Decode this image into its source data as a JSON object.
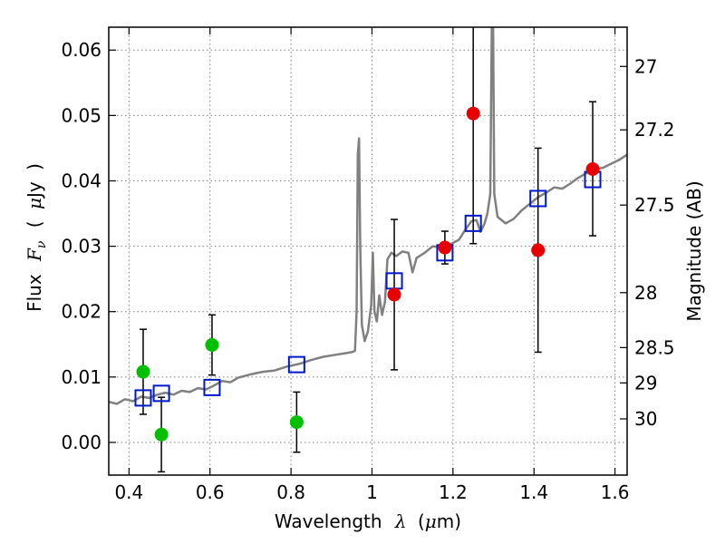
{
  "chart_data": {
    "type": "scatter",
    "xlabel_parts": [
      "Wavelength",
      "λ",
      "(",
      "μ",
      "m)"
    ],
    "ylabel_parts": [
      "Flux",
      "F",
      "ν",
      "(",
      "μ",
      "Jy",
      ")"
    ],
    "y2label": "Magnitude (AB)",
    "xlim": [
      0.35,
      1.63
    ],
    "ylim": [
      -0.005,
      0.0635
    ],
    "grid": true,
    "x_ticks": [
      {
        "value": 0.4,
        "label": "0.4"
      },
      {
        "value": 0.6,
        "label": "0.6"
      },
      {
        "value": 0.8,
        "label": "0.8"
      },
      {
        "value": 1.0,
        "label": "1"
      },
      {
        "value": 1.2,
        "label": "1.2"
      },
      {
        "value": 1.4,
        "label": "1.4"
      },
      {
        "value": 1.6,
        "label": "1.6"
      }
    ],
    "y_ticks": [
      {
        "value": 0.0,
        "label": "0.00"
      },
      {
        "value": 0.01,
        "label": "0.01"
      },
      {
        "value": 0.02,
        "label": "0.02"
      },
      {
        "value": 0.03,
        "label": "0.03"
      },
      {
        "value": 0.04,
        "label": "0.04"
      },
      {
        "value": 0.05,
        "label": "0.05"
      },
      {
        "value": 0.06,
        "label": "0.06"
      }
    ],
    "mag_ticks": [
      {
        "flux": 0.0575,
        "label": "27"
      },
      {
        "flux": 0.0478,
        "label": "27.2"
      },
      {
        "flux": 0.0363,
        "label": "27.5"
      },
      {
        "flux": 0.0229,
        "label": "28"
      },
      {
        "flux": 0.0145,
        "label": "28.5"
      },
      {
        "flux": 0.0091,
        "label": "29"
      },
      {
        "flux": 0.0036,
        "label": "30"
      }
    ],
    "colors": {
      "green": "#00c000",
      "red": "#e60000",
      "blue": "#0018c8",
      "sed": "#808080",
      "grid": "#808080",
      "errorbar": "#000000"
    },
    "series": [
      {
        "name": "green-photometry",
        "marker": "circle",
        "color": "green",
        "points": [
          {
            "x": 0.435,
            "y": 0.0108,
            "lo": 0.0043,
            "hi": 0.0173
          },
          {
            "x": 0.48,
            "y": 0.0012,
            "lo": -0.0045,
            "hi": 0.0069
          },
          {
            "x": 0.605,
            "y": 0.0149,
            "lo": 0.0103,
            "hi": 0.0195
          },
          {
            "x": 0.814,
            "y": 0.0031,
            "lo": -0.0015,
            "hi": 0.0077
          }
        ]
      },
      {
        "name": "red-photometry",
        "marker": "circle",
        "color": "red",
        "points": [
          {
            "x": 1.055,
            "y": 0.0226,
            "lo": 0.0111,
            "hi": 0.0341
          },
          {
            "x": 1.18,
            "y": 0.0298,
            "lo": 0.0273,
            "hi": 0.0323
          },
          {
            "x": 1.25,
            "y": 0.0503,
            "lo": 0.0304,
            "hi": 0.064
          },
          {
            "x": 1.41,
            "y": 0.0294,
            "lo": 0.0138,
            "hi": 0.045
          },
          {
            "x": 1.545,
            "y": 0.0418,
            "lo": 0.0316,
            "hi": 0.0521
          }
        ]
      },
      {
        "name": "model-synthetic",
        "marker": "square",
        "color": "blue",
        "points": [
          {
            "x": 0.435,
            "y": 0.0068
          },
          {
            "x": 0.48,
            "y": 0.0075
          },
          {
            "x": 0.605,
            "y": 0.0084
          },
          {
            "x": 0.814,
            "y": 0.0119
          },
          {
            "x": 1.055,
            "y": 0.0247
          },
          {
            "x": 1.18,
            "y": 0.029
          },
          {
            "x": 1.25,
            "y": 0.0335
          },
          {
            "x": 1.41,
            "y": 0.0373
          },
          {
            "x": 1.545,
            "y": 0.0402
          }
        ]
      }
    ],
    "sed_line": {
      "name": "model-sed",
      "color": "sed",
      "points": [
        [
          0.35,
          0.0062
        ],
        [
          0.37,
          0.0059
        ],
        [
          0.39,
          0.0066
        ],
        [
          0.41,
          0.0063
        ],
        [
          0.43,
          0.007
        ],
        [
          0.45,
          0.0068
        ],
        [
          0.47,
          0.0073
        ],
        [
          0.49,
          0.0076
        ],
        [
          0.51,
          0.0073
        ],
        [
          0.53,
          0.0079
        ],
        [
          0.55,
          0.0077
        ],
        [
          0.57,
          0.0083
        ],
        [
          0.59,
          0.0081
        ],
        [
          0.61,
          0.0087
        ],
        [
          0.63,
          0.0094
        ],
        [
          0.65,
          0.0092
        ],
        [
          0.67,
          0.0099
        ],
        [
          0.7,
          0.0104
        ],
        [
          0.73,
          0.0108
        ],
        [
          0.76,
          0.011
        ],
        [
          0.79,
          0.0116
        ],
        [
          0.82,
          0.012
        ],
        [
          0.85,
          0.0126
        ],
        [
          0.88,
          0.0131
        ],
        [
          0.91,
          0.0134
        ],
        [
          0.93,
          0.0136
        ],
        [
          0.95,
          0.0138
        ],
        [
          0.958,
          0.014
        ],
        [
          0.962,
          0.02
        ],
        [
          0.965,
          0.044
        ],
        [
          0.968,
          0.0465
        ],
        [
          0.971,
          0.03
        ],
        [
          0.975,
          0.018
        ],
        [
          0.982,
          0.0155
        ],
        [
          0.99,
          0.017
        ],
        [
          0.998,
          0.021
        ],
        [
          1.002,
          0.029
        ],
        [
          1.006,
          0.02
        ],
        [
          1.012,
          0.0185
        ],
        [
          1.018,
          0.0225
        ],
        [
          1.025,
          0.0195
        ],
        [
          1.032,
          0.0215
        ],
        [
          1.038,
          0.028
        ],
        [
          1.048,
          0.029
        ],
        [
          1.06,
          0.0285
        ],
        [
          1.075,
          0.0292
        ],
        [
          1.09,
          0.029
        ],
        [
          1.1,
          0.026
        ],
        [
          1.11,
          0.0282
        ],
        [
          1.13,
          0.029
        ],
        [
          1.15,
          0.03
        ],
        [
          1.175,
          0.0298
        ],
        [
          1.2,
          0.0305
        ],
        [
          1.215,
          0.031
        ],
        [
          1.23,
          0.0325
        ],
        [
          1.245,
          0.0338
        ],
        [
          1.258,
          0.034
        ],
        [
          1.268,
          0.0322
        ],
        [
          1.278,
          0.0335
        ],
        [
          1.285,
          0.035
        ],
        [
          1.292,
          0.038
        ],
        [
          1.296,
          0.064
        ],
        [
          1.299,
          0.064
        ],
        [
          1.302,
          0.038
        ],
        [
          1.31,
          0.0345
        ],
        [
          1.33,
          0.0335
        ],
        [
          1.35,
          0.0342
        ],
        [
          1.37,
          0.0355
        ],
        [
          1.39,
          0.0365
        ],
        [
          1.41,
          0.0375
        ],
        [
          1.43,
          0.0382
        ],
        [
          1.45,
          0.039
        ],
        [
          1.47,
          0.0388
        ],
        [
          1.49,
          0.0396
        ],
        [
          1.51,
          0.0405
        ],
        [
          1.53,
          0.0412
        ],
        [
          1.55,
          0.0418
        ],
        [
          1.57,
          0.042
        ],
        [
          1.59,
          0.0426
        ],
        [
          1.61,
          0.0432
        ],
        [
          1.63,
          0.044
        ]
      ]
    }
  }
}
